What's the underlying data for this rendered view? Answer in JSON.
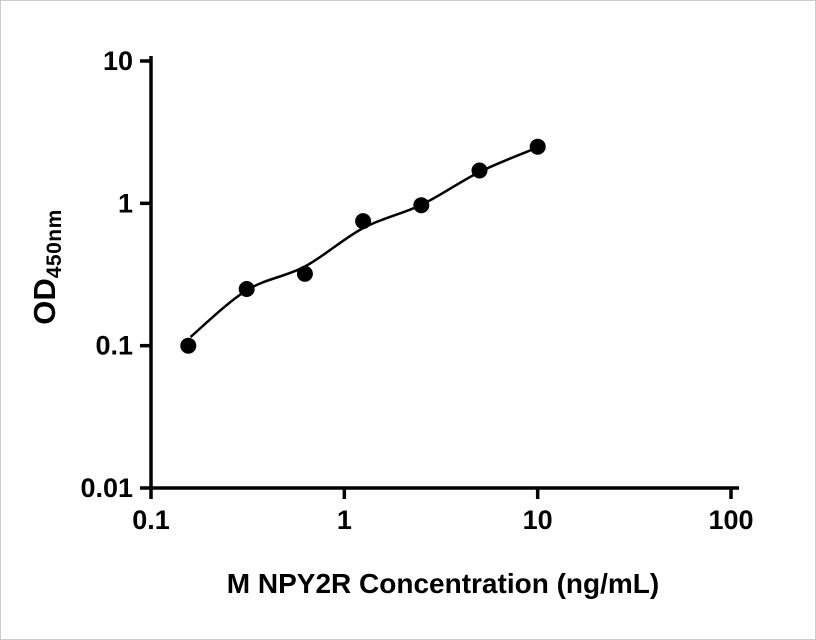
{
  "figure": {
    "background": "#ffffff",
    "border_color": "#cccccc"
  },
  "chart_data": {
    "type": "scatter",
    "title": "",
    "xlabel": "M NPY2R Concentration (ng/mL)",
    "ylabel": "OD450nm",
    "ylabel_base": "OD",
    "ylabel_sub": "450nm",
    "x_scale": "log",
    "y_scale": "log",
    "xlim": [
      0.1,
      100
    ],
    "ylim": [
      0.01,
      10
    ],
    "grid": false,
    "legend": null,
    "axis_color": "#000000",
    "x_ticks": [
      {
        "value": 0.1,
        "label": "0.1"
      },
      {
        "value": 1,
        "label": "1"
      },
      {
        "value": 10,
        "label": "10"
      },
      {
        "value": 100,
        "label": "100"
      }
    ],
    "y_ticks": [
      {
        "value": 0.01,
        "label": "0.01"
      },
      {
        "value": 0.1,
        "label": "0.1"
      },
      {
        "value": 1,
        "label": "1"
      },
      {
        "value": 10,
        "label": "10"
      }
    ],
    "series": [
      {
        "name": "standard-points",
        "type": "scatter",
        "marker": "circle",
        "marker_radius": 8,
        "color": "#000000",
        "points": [
          {
            "x": 0.156,
            "y": 0.1
          },
          {
            "x": 0.3125,
            "y": 0.25
          },
          {
            "x": 0.625,
            "y": 0.32
          },
          {
            "x": 1.25,
            "y": 0.75
          },
          {
            "x": 2.5,
            "y": 0.97
          },
          {
            "x": 5,
            "y": 1.7
          },
          {
            "x": 10,
            "y": 2.5
          }
        ]
      },
      {
        "name": "fit-curve",
        "type": "line",
        "color": "#000000",
        "stroke_width": 2.5,
        "points": [
          {
            "x": 0.16,
            "y": 0.115
          },
          {
            "x": 0.3125,
            "y": 0.245
          },
          {
            "x": 0.625,
            "y": 0.36
          },
          {
            "x": 1.25,
            "y": 0.67
          },
          {
            "x": 2.5,
            "y": 0.975
          },
          {
            "x": 5,
            "y": 1.66
          },
          {
            "x": 10,
            "y": 2.47
          }
        ]
      }
    ]
  }
}
